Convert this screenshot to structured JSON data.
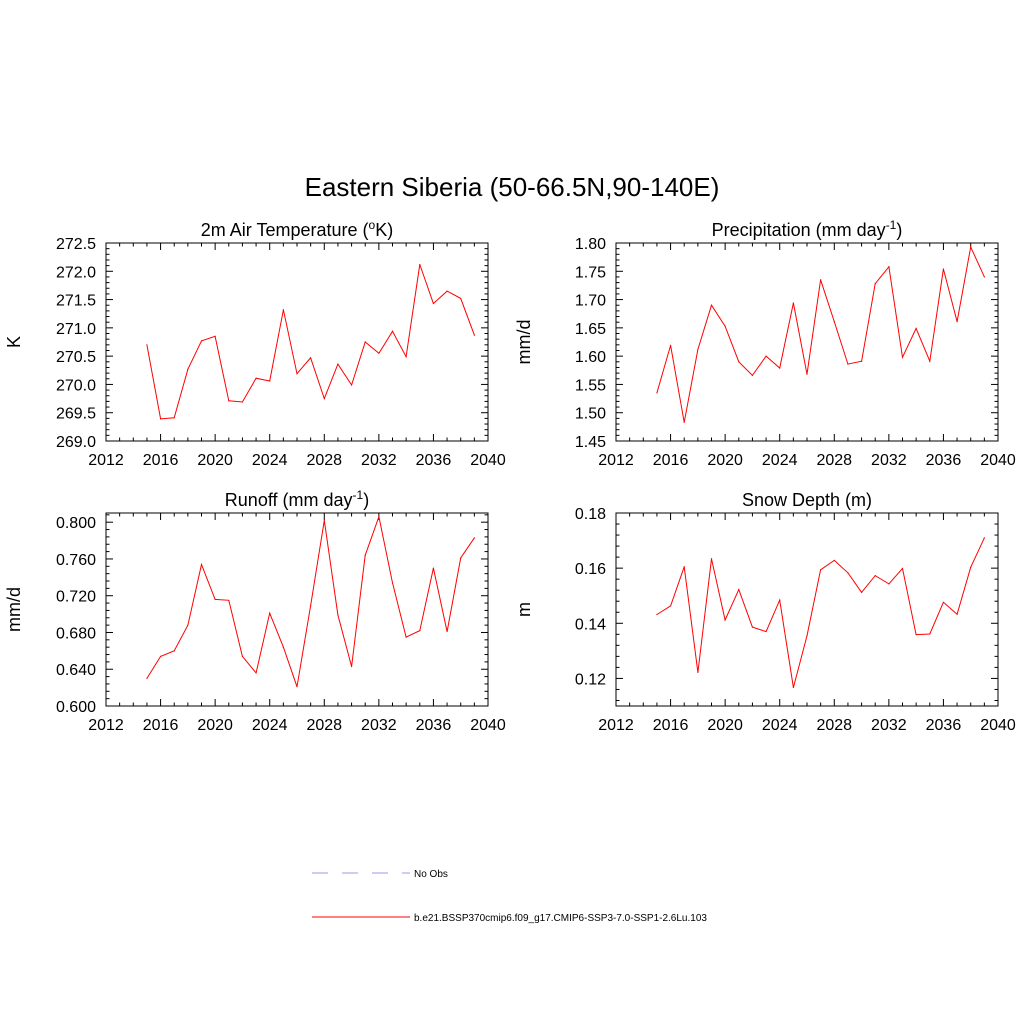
{
  "title": "Eastern Siberia (50-66.5N,90-140E)",
  "colors": {
    "series": "#ff0000",
    "obs": "#9999ee",
    "axis": "#000000",
    "background": "#ffffff"
  },
  "legend": [
    {
      "label": "No Obs",
      "style": "dashed",
      "color": "#9999ee"
    },
    {
      "label": "b.e21.BSSP370cmip6.f09_g17.CMIP6-SSP3-7.0-SSP1-2.6Lu.103",
      "style": "solid",
      "color": "#ff0000"
    }
  ],
  "chart_data": [
    {
      "type": "line",
      "title": "2m Air Temperature (",
      "title_sup": "o",
      "title_after": "K)",
      "ylabel": "K",
      "xlim": [
        2012,
        2040
      ],
      "xticks": [
        2012,
        2016,
        2020,
        2024,
        2028,
        2032,
        2036,
        2040
      ],
      "xtick_labels": [
        "2012",
        "2016",
        "2020",
        "2024",
        "2028",
        "2032",
        "2036",
        "2040"
      ],
      "ylim": [
        269.0,
        272.5
      ],
      "yticks": [
        269.0,
        269.5,
        270.0,
        270.5,
        271.0,
        271.5,
        272.0,
        272.5
      ],
      "ytick_labels": [
        "269.0",
        "269.5",
        "270.0",
        "270.5",
        "271.0",
        "271.5",
        "272.0",
        "272.5"
      ],
      "series": [
        {
          "x": [
            2015,
            2016,
            2017,
            2018,
            2019,
            2020,
            2021,
            2022,
            2023,
            2024,
            2025,
            2026,
            2027,
            2028,
            2029,
            2030,
            2031,
            2032,
            2033,
            2034,
            2035,
            2036,
            2037,
            2038,
            2039
          ],
          "values": [
            270.7,
            269.39,
            269.41,
            270.27,
            270.77,
            270.85,
            269.71,
            269.69,
            270.11,
            270.06,
            271.32,
            270.19,
            270.47,
            269.75,
            270.36,
            269.99,
            270.75,
            270.55,
            270.94,
            270.49,
            272.12,
            271.43,
            271.65,
            271.52,
            270.87
          ]
        }
      ]
    },
    {
      "type": "line",
      "title": "Precipitation (mm day",
      "title_sup": "-1",
      "title_after": ")",
      "ylabel": "mm/d",
      "xlim": [
        2012,
        2040
      ],
      "xticks": [
        2012,
        2016,
        2020,
        2024,
        2028,
        2032,
        2036,
        2040
      ],
      "xtick_labels": [
        "2012",
        "2016",
        "2020",
        "2024",
        "2028",
        "2032",
        "2036",
        "2040"
      ],
      "ylim": [
        1.45,
        1.8
      ],
      "yticks": [
        1.45,
        1.5,
        1.55,
        1.6,
        1.65,
        1.7,
        1.75,
        1.8
      ],
      "ytick_labels": [
        "1.45",
        "1.50",
        "1.55",
        "1.60",
        "1.65",
        "1.70",
        "1.75",
        "1.80"
      ],
      "series": [
        {
          "x": [
            2015,
            2016,
            2017,
            2018,
            2019,
            2020,
            2021,
            2022,
            2023,
            2024,
            2025,
            2026,
            2027,
            2028,
            2029,
            2030,
            2031,
            2032,
            2033,
            2034,
            2035,
            2036,
            2037,
            2038,
            2039
          ],
          "values": [
            1.535,
            1.619,
            1.483,
            1.612,
            1.69,
            1.653,
            1.59,
            1.566,
            1.6,
            1.579,
            1.694,
            1.568,
            1.735,
            1.661,
            1.586,
            1.591,
            1.728,
            1.758,
            1.598,
            1.649,
            1.591,
            1.754,
            1.661,
            1.793,
            1.74
          ]
        }
      ]
    },
    {
      "type": "line",
      "title": "Runoff (mm day",
      "title_sup": "-1",
      "title_after": ")",
      "ylabel": "mm/d",
      "xlim": [
        2012,
        2040
      ],
      "xticks": [
        2012,
        2016,
        2020,
        2024,
        2028,
        2032,
        2036,
        2040
      ],
      "xtick_labels": [
        "2012",
        "2016",
        "2020",
        "2024",
        "2028",
        "2032",
        "2036",
        "2040"
      ],
      "ylim": [
        0.6,
        0.81
      ],
      "yticks": [
        0.6,
        0.64,
        0.68,
        0.72,
        0.76,
        0.8
      ],
      "ytick_labels": [
        "0.600",
        "0.640",
        "0.680",
        "0.720",
        "0.760",
        "0.800"
      ],
      "series": [
        {
          "x": [
            2015,
            2016,
            2017,
            2018,
            2019,
            2020,
            2021,
            2022,
            2023,
            2024,
            2025,
            2026,
            2027,
            2028,
            2029,
            2030,
            2031,
            2032,
            2033,
            2034,
            2035,
            2036,
            2037,
            2038,
            2039
          ],
          "values": [
            0.63,
            0.654,
            0.66,
            0.688,
            0.754,
            0.716,
            0.715,
            0.654,
            0.636,
            0.701,
            0.664,
            0.621,
            0.709,
            0.802,
            0.699,
            0.643,
            0.764,
            0.806,
            0.734,
            0.675,
            0.682,
            0.75,
            0.681,
            0.761,
            0.783
          ]
        }
      ]
    },
    {
      "type": "line",
      "title": "Snow Depth (m)",
      "title_sup": "",
      "title_after": "",
      "ylabel": "m",
      "xlim": [
        2012,
        2040
      ],
      "xticks": [
        2012,
        2016,
        2020,
        2024,
        2028,
        2032,
        2036,
        2040
      ],
      "xtick_labels": [
        "2012",
        "2016",
        "2020",
        "2024",
        "2028",
        "2032",
        "2036",
        "2040"
      ],
      "ylim": [
        0.11,
        0.18
      ],
      "yticks": [
        0.12,
        0.14,
        0.16,
        0.18
      ],
      "ytick_labels": [
        "0.12",
        "0.14",
        "0.16",
        "0.18"
      ],
      "series": [
        {
          "x": [
            2015,
            2016,
            2017,
            2018,
            2019,
            2020,
            2021,
            2022,
            2023,
            2024,
            2025,
            2026,
            2027,
            2028,
            2029,
            2030,
            2031,
            2032,
            2033,
            2034,
            2035,
            2036,
            2037,
            2038,
            2039
          ],
          "values": [
            0.1432,
            0.1463,
            0.1605,
            0.1222,
            0.1634,
            0.1412,
            0.1522,
            0.1386,
            0.137,
            0.1484,
            0.1167,
            0.1355,
            0.1594,
            0.1628,
            0.1583,
            0.1512,
            0.1573,
            0.1543,
            0.1599,
            0.1359,
            0.1361,
            0.1476,
            0.1433,
            0.1603,
            0.171
          ]
        }
      ]
    }
  ]
}
